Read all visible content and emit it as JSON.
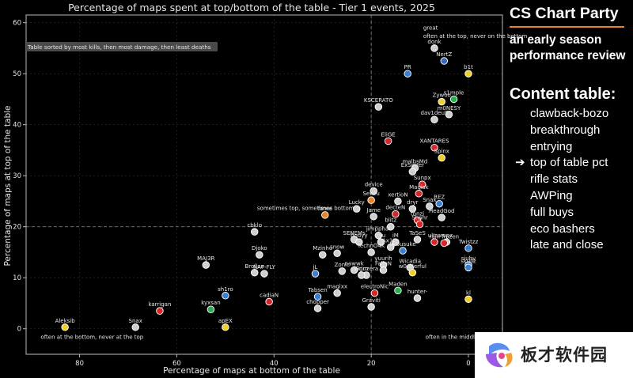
{
  "chart_data": {
    "type": "scatter",
    "title": "Percentage of maps spent at top/bottom of the table - Tier 1 events, 2025",
    "xlabel": "Percentage of maps at bottom of the table",
    "ylabel": "Percentage of maps at top of the table",
    "x_reversed": true,
    "xlim": [
      91,
      -7
    ],
    "ylim": [
      -5,
      61.5
    ],
    "x_ticks": [
      80,
      60,
      40,
      20,
      0
    ],
    "y_ticks": [
      0,
      10,
      20,
      30,
      40,
      50,
      60
    ],
    "reference_lines": {
      "x": 20,
      "y": 20
    },
    "note": "Table sorted by most kills, then most damage, then least deaths",
    "annotations": [
      {
        "text": "great",
        "x": 9.3,
        "y": 58.6,
        "anchor": "start"
      },
      {
        "text": "often at the top, never on the bottom",
        "x": 9.3,
        "y": 57.0,
        "anchor": "start"
      },
      {
        "text": "sometimes top, sometimes bottom",
        "x": 23.5,
        "y": 23.3,
        "anchor": "end"
      },
      {
        "text": "often at the bottom, never at the top",
        "x": 88,
        "y": -2,
        "anchor": "start"
      },
      {
        "text": "often in the middle",
        "x": -2,
        "y": -2,
        "anchor": "end"
      }
    ],
    "points": [
      {
        "name": "donk",
        "x": 7,
        "y": 55,
        "color": "#cfcfcf"
      },
      {
        "name": "NertZ",
        "x": 5,
        "y": 52.5,
        "color": "#3a6ab5"
      },
      {
        "name": "b1t",
        "x": 0,
        "y": 50,
        "color": "#f2d028"
      },
      {
        "name": "PR",
        "x": 12.5,
        "y": 50,
        "color": "#3a7fd0"
      },
      {
        "name": "Zywoo",
        "x": 5.5,
        "y": 44.5,
        "color": "#f2d028"
      },
      {
        "name": "s1mple",
        "x": 3,
        "y": 45,
        "color": "#2eae52"
      },
      {
        "name": "KSCERATO",
        "x": 18.5,
        "y": 43.5,
        "color": "#cfcfcf"
      },
      {
        "name": "m0NESY",
        "x": 4,
        "y": 42,
        "color": "#cfcfcf"
      },
      {
        "name": "dav1deuS",
        "x": 7,
        "y": 41,
        "color": "#cfcfcf"
      },
      {
        "name": "EliGE",
        "x": 16.5,
        "y": 36.8,
        "color": "#d6282b"
      },
      {
        "name": "XANTARES",
        "x": 7,
        "y": 35.5,
        "color": "#d6282b"
      },
      {
        "name": "Spinx",
        "x": 5.5,
        "y": 33.5,
        "color": "#f2d028"
      },
      {
        "name": "malbsMd",
        "x": 11,
        "y": 31.5,
        "color": "#cfcfcf"
      },
      {
        "name": "ExSpirer",
        "x": 11.5,
        "y": 30.8,
        "color": "#cfcfcf"
      },
      {
        "name": "Sunpx",
        "x": 9.5,
        "y": 28.3,
        "color": "#d6282b"
      },
      {
        "name": "device",
        "x": 19.5,
        "y": 27,
        "color": "#cfcfcf"
      },
      {
        "name": "Magisk",
        "x": 10.2,
        "y": 26.5,
        "color": "#d6282b"
      },
      {
        "name": "Senzu",
        "x": 20,
        "y": 25.2,
        "color": "#e8832a"
      },
      {
        "name": "xertioN",
        "x": 14.5,
        "y": 25,
        "color": "#cfcfcf"
      },
      {
        "name": "REZ",
        "x": 6,
        "y": 24.5,
        "color": "#3a7fd0"
      },
      {
        "name": "Snax",
        "x": 8,
        "y": 24,
        "color": "#cfcfcf"
      },
      {
        "name": "dryr",
        "x": 11.5,
        "y": 23.5,
        "color": "#cfcfcf"
      },
      {
        "name": "fame",
        "x": 29.5,
        "y": 22.3,
        "color": "#e8832a"
      },
      {
        "name": "Lucky",
        "x": 23,
        "y": 23.5,
        "color": "#cfcfcf"
      },
      {
        "name": "Jame",
        "x": 19.5,
        "y": 22,
        "color": "#cfcfcf"
      },
      {
        "name": "decteN",
        "x": 15,
        "y": 22.5,
        "color": "#d6282b"
      },
      {
        "name": "tonzi",
        "x": 10.5,
        "y": 21.3,
        "color": "#d6282b"
      },
      {
        "name": "HeadGod",
        "x": 5.5,
        "y": 21.8,
        "color": "#cfcfcf"
      },
      {
        "name": "Shahr",
        "x": 10,
        "y": 20.5,
        "color": "#d6282b"
      },
      {
        "name": "blitz",
        "x": 16,
        "y": 20,
        "color": "#cfcfcf"
      },
      {
        "name": "cbklo",
        "x": 44,
        "y": 19,
        "color": "#cfcfcf"
      },
      {
        "name": "jimpphat",
        "x": 18.5,
        "y": 18.3,
        "color": "#cfcfcf"
      },
      {
        "name": "SENEMs",
        "x": 23.5,
        "y": 17.5,
        "color": "#cfcfcf"
      },
      {
        "name": "bodyy",
        "x": 22.5,
        "y": 17,
        "color": "#cfcfcf"
      },
      {
        "name": "TaSeS",
        "x": 10.5,
        "y": 17.5,
        "color": "#cfcfcf"
      },
      {
        "name": "ryu",
        "x": 18,
        "y": 17,
        "color": "#cfcfcf"
      },
      {
        "name": "iM",
        "x": 15,
        "y": 17,
        "color": "#cfcfcf"
      },
      {
        "name": "ultra",
        "x": 7,
        "y": 17,
        "color": "#d6282b"
      },
      {
        "name": "ropz",
        "x": 4.5,
        "y": 17,
        "color": "#cfcfcf"
      },
      {
        "name": "rain frozen",
        "x": 5,
        "y": 16.8,
        "color": "#d6282b"
      },
      {
        "name": "Twistzz",
        "x": 0,
        "y": 15.8,
        "color": "#3a7fd0"
      },
      {
        "name": "TechnO4K",
        "x": 20,
        "y": 15,
        "color": "#cfcfcf"
      },
      {
        "name": "Ax1Le",
        "x": 16,
        "y": 16,
        "color": "#cfcfcf"
      },
      {
        "name": "Kyousuke",
        "x": 13.5,
        "y": 15.3,
        "color": "#3a7fd0"
      },
      {
        "name": "Mzinho",
        "x": 30,
        "y": 14.5,
        "color": "#cfcfcf"
      },
      {
        "name": "snow",
        "x": 27,
        "y": 14.8,
        "color": "#cfcfcf"
      },
      {
        "name": "Djoko",
        "x": 43,
        "y": 14.5,
        "color": "#cfcfcf"
      },
      {
        "name": "yuurih",
        "x": 17.5,
        "y": 12.5,
        "color": "#cfcfcf"
      },
      {
        "name": "siuhy",
        "x": 0,
        "y": 12.5,
        "color": "#3a7fd0"
      },
      {
        "name": "skullz",
        "x": 0,
        "y": 12,
        "color": "#3a7fd0"
      },
      {
        "name": "MAJ3R",
        "x": 54,
        "y": 12.5,
        "color": "#cfcfcf"
      },
      {
        "name": "nawwk",
        "x": 23.5,
        "y": 11.5,
        "color": "#cfcfcf"
      },
      {
        "name": "Zonic",
        "x": 26,
        "y": 11.3,
        "color": "#cfcfcf"
      },
      {
        "name": "Wicadia",
        "x": 12,
        "y": 12,
        "color": "#cfcfcf"
      },
      {
        "name": "FalleN",
        "x": 17.5,
        "y": 11.5,
        "color": "#cfcfcf"
      },
      {
        "name": "w0nderful",
        "x": 11.5,
        "y": 11,
        "color": "#f2d028"
      },
      {
        "name": "Brollan",
        "x": 44,
        "y": 11,
        "color": "#cfcfcf"
      },
      {
        "name": "NAF-FLY",
        "x": 42,
        "y": 10.8,
        "color": "#cfcfcf"
      },
      {
        "name": "jL",
        "x": 31.5,
        "y": 10.8,
        "color": "#3a7fd0"
      },
      {
        "name": "biguzera",
        "x": 21,
        "y": 10.5,
        "color": "#cfcfcf"
      },
      {
        "name": "Grim",
        "x": 22,
        "y": 10.5,
        "color": "#cfcfcf"
      },
      {
        "name": "magixx",
        "x": 27,
        "y": 7,
        "color": "#cfcfcf"
      },
      {
        "name": "Tabsen",
        "x": 31,
        "y": 6.3,
        "color": "#3a7fd0"
      },
      {
        "name": "electroNic",
        "x": 19.3,
        "y": 7,
        "color": "#d6282b"
      },
      {
        "name": "Maden",
        "x": 14.5,
        "y": 7.5,
        "color": "#2eae52"
      },
      {
        "name": "hunter-",
        "x": 10.5,
        "y": 6,
        "color": "#cfcfcf"
      },
      {
        "name": "kl",
        "x": 0,
        "y": 5.8,
        "color": "#f2d028"
      },
      {
        "name": "cadiaN",
        "x": 41,
        "y": 5.3,
        "color": "#d6282b"
      },
      {
        "name": "sh1ro",
        "x": 50,
        "y": 6.5,
        "color": "#3a7fd0"
      },
      {
        "name": "chopper",
        "x": 31,
        "y": 4,
        "color": "#cfcfcf"
      },
      {
        "name": "Graviti",
        "x": 20,
        "y": 4.3,
        "color": "#cfcfcf"
      },
      {
        "name": "karrigan",
        "x": 63.5,
        "y": 3.5,
        "color": "#d6282b"
      },
      {
        "name": "kyxsan",
        "x": 53,
        "y": 3.8,
        "color": "#2eae52"
      },
      {
        "name": "apEX",
        "x": 50,
        "y": 0.3,
        "color": "#f2d028"
      },
      {
        "name": "Aleksib",
        "x": 83,
        "y": 0.3,
        "color": "#f2d028"
      },
      {
        "name": "Snax",
        "x": 68.5,
        "y": 0.3,
        "color": "#cfcfcf"
      }
    ]
  },
  "sidebar": {
    "brand": "CS Chart Party",
    "subtitle_line1": "an early season",
    "subtitle_line2": "performance review",
    "content_heading": "Content table:",
    "arrow": "➔",
    "items": [
      {
        "label": "clawback-bozo",
        "current": false
      },
      {
        "label": "breakthrough",
        "current": false
      },
      {
        "label": "entrying",
        "current": false
      },
      {
        "label": "top of table pct",
        "current": true
      },
      {
        "label": "rifle stats",
        "current": false
      },
      {
        "label": "AWPing",
        "current": false
      },
      {
        "label": "full buys",
        "current": false
      },
      {
        "label": "eco bashers",
        "current": false
      },
      {
        "label": "late and close",
        "current": false
      }
    ]
  },
  "watermark": {
    "text": "板才软件园",
    "colors": [
      "#5b8def",
      "#9b59e6",
      "#f0a030",
      "#e84393"
    ]
  }
}
